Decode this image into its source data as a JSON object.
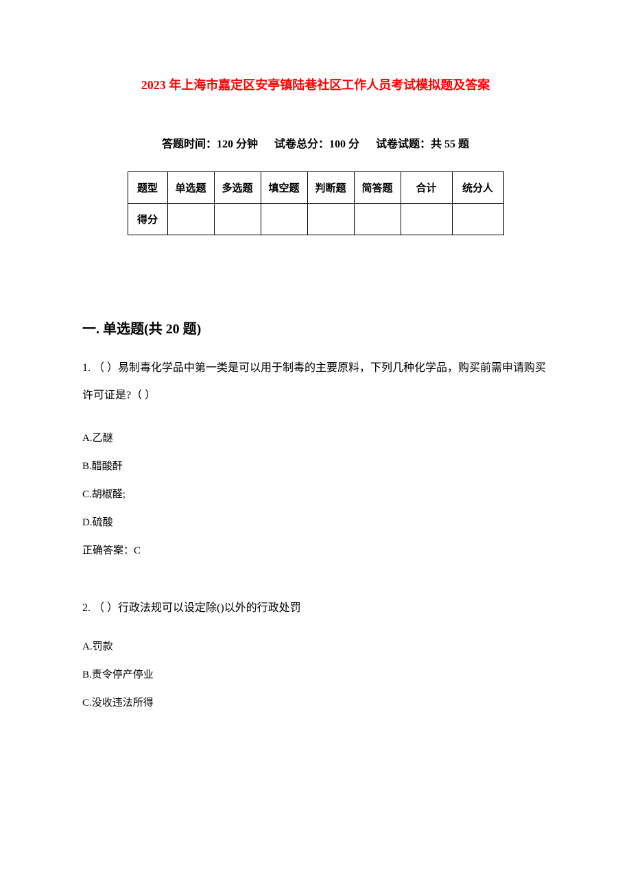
{
  "document": {
    "title": "2023 年上海市嘉定区安亭镇陆巷社区工作人员考试模拟题及答案",
    "title_color": "#ff0000",
    "title_fontsize": 18,
    "background_color": "#ffffff",
    "text_color": "#000000",
    "meta": {
      "time": "答题时间：120 分钟",
      "total_score": "试卷总分：100 分",
      "question_count": "试卷试题：共 55 题",
      "fontsize": 16
    },
    "score_table": {
      "border_color": "#000000",
      "fontsize": 15,
      "headers": [
        "题型",
        "单选题",
        "多选题",
        "填空题",
        "判断题",
        "简答题",
        "合计",
        "统分人"
      ],
      "row_label": "得分",
      "values": [
        "",
        "",
        "",
        "",
        "",
        "",
        ""
      ]
    },
    "section": {
      "heading": "一. 单选题(共 20 题)",
      "fontsize": 20,
      "questions": [
        {
          "number": "1.",
          "stem": "（ ）易制毒化学品中第一类是可以用于制毒的主要原料，下列几种化学品，购买前需申请购买许可证是?（ ）",
          "options": [
            {
              "label": "A.",
              "text": "乙醚"
            },
            {
              "label": "B.",
              "text": "醋酸酐"
            },
            {
              "label": "C.",
              "text": "胡椒醛;"
            },
            {
              "label": "D.",
              "text": "硫酸"
            }
          ],
          "answer": "正确答案：C"
        },
        {
          "number": "2.",
          "stem": "（ ）行政法规可以设定除()以外的行政处罚",
          "options": [
            {
              "label": "A.",
              "text": "罚款"
            },
            {
              "label": "B.",
              "text": "责令停产停业"
            },
            {
              "label": "C.",
              "text": "没收违法所得"
            }
          ]
        }
      ]
    }
  }
}
